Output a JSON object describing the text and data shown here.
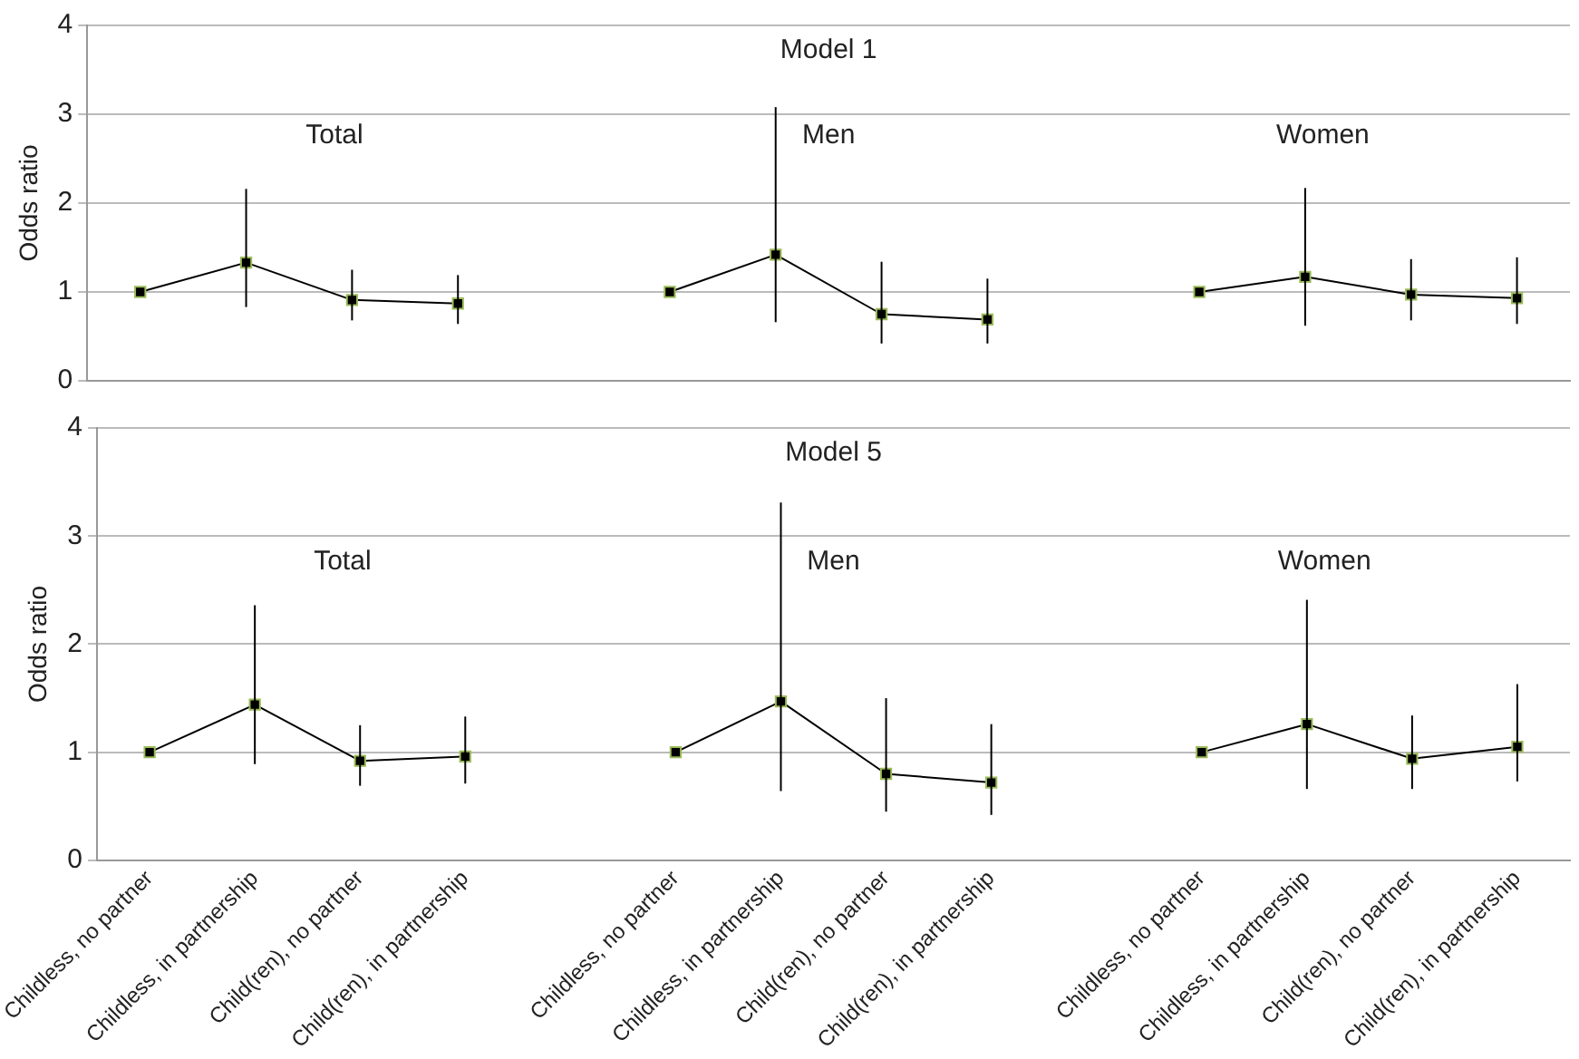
{
  "chart_data": [
    {
      "type": "line",
      "title": "Model 1",
      "ylabel": "Odds ratio",
      "annotations": [
        "Total",
        "Men",
        "Women"
      ],
      "categories": [
        null,
        null,
        null,
        null,
        null,
        null,
        null,
        null,
        null,
        null,
        null,
        null,
        null,
        null
      ],
      "series": [
        {
          "color": "#000000",
          "values": [
            1.0,
            1.33,
            0.91,
            0.87,
            null,
            1.0,
            1.42,
            0.75,
            0.69,
            null,
            1.0,
            1.17,
            0.97,
            0.93
          ],
          "errors": [
            null,
            [
              0.83,
              2.16
            ],
            [
              0.68,
              1.25
            ],
            [
              0.64,
              1.19
            ],
            null,
            null,
            [
              0.66,
              3.08
            ],
            [
              0.42,
              1.34
            ],
            [
              0.42,
              1.15
            ],
            null,
            null,
            [
              0.62,
              2.17
            ],
            [
              0.68,
              1.37
            ],
            [
              0.64,
              1.39
            ]
          ]
        }
      ],
      "ylim": [
        0,
        4
      ],
      "yticks": [
        0,
        1,
        2,
        3,
        4
      ],
      "grid": "y",
      "marker": "square",
      "line_style": "solid",
      "tick_labels": "y"
    },
    {
      "type": "line",
      "title": "Model 5",
      "ylabel": "Odds ratio",
      "annotations": [
        "Total",
        "Men",
        "Women"
      ],
      "categories": [
        "Childless, no partner",
        "Childless, in partnership",
        "Child(ren), no partner",
        "Child(ren), in partnership",
        null,
        "Childless, no partner",
        "Childless, in partnership",
        "Child(ren), no partner",
        "Child(ren), in partnership",
        null,
        "Childless, no partner",
        "Childless, in partnership",
        "Child(ren), no partner",
        "Child(ren), in partnership"
      ],
      "series": [
        {
          "color": "#000000",
          "values": [
            1.0,
            1.44,
            0.92,
            0.96,
            null,
            1.0,
            1.47,
            0.8,
            0.72,
            null,
            1.0,
            1.26,
            0.94,
            1.05
          ],
          "errors": [
            null,
            [
              0.89,
              2.36
            ],
            [
              0.69,
              1.25
            ],
            [
              0.71,
              1.33
            ],
            null,
            null,
            [
              0.64,
              3.31
            ],
            [
              0.45,
              1.5
            ],
            [
              0.42,
              1.26
            ],
            null,
            null,
            [
              0.66,
              2.41
            ],
            [
              0.66,
              1.34
            ],
            [
              0.73,
              1.63
            ]
          ]
        }
      ],
      "ylim": [
        0,
        4
      ],
      "yticks": [
        0,
        1,
        2,
        3,
        4
      ],
      "grid": "y",
      "marker": "square",
      "line_style": "solid"
    }
  ]
}
